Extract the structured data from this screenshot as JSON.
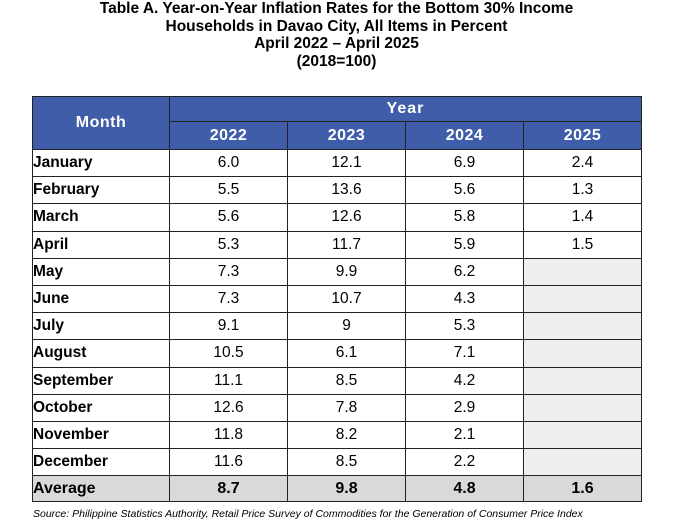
{
  "title": {
    "line1": "Table A. Year-on-Year Inflation Rates for the Bottom 30% Income",
    "line2": "Households in Davao City, All Items in Percent",
    "line3": "April 2022 – April 2025",
    "line4": "(2018=100)"
  },
  "table": {
    "month_header": "Month",
    "year_header": "Year",
    "years": [
      "2022",
      "2023",
      "2024",
      "2025"
    ],
    "rows": [
      {
        "month": "January",
        "values": [
          "6.0",
          "12.1",
          "6.9",
          "2.4"
        ]
      },
      {
        "month": "February",
        "values": [
          "5.5",
          "13.6",
          "5.6",
          "1.3"
        ]
      },
      {
        "month": "March",
        "values": [
          "5.6",
          "12.6",
          "5.8",
          "1.4"
        ]
      },
      {
        "month": "April",
        "values": [
          "5.3",
          "11.7",
          "5.9",
          "1.5"
        ]
      },
      {
        "month": "May",
        "values": [
          "7.3",
          "9.9",
          "6.2",
          ""
        ]
      },
      {
        "month": "June",
        "values": [
          "7.3",
          "10.7",
          "4.3",
          ""
        ]
      },
      {
        "month": "July",
        "values": [
          "9.1",
          "9",
          "5.3",
          ""
        ]
      },
      {
        "month": "August",
        "values": [
          "10.5",
          "6.1",
          "7.1",
          ""
        ]
      },
      {
        "month": "September",
        "values": [
          "11.1",
          "8.5",
          "4.2",
          ""
        ]
      },
      {
        "month": "October",
        "values": [
          "12.6",
          "7.8",
          "2.9",
          ""
        ]
      },
      {
        "month": "November",
        "values": [
          "11.8",
          "8.2",
          "2.1",
          ""
        ]
      },
      {
        "month": "December",
        "values": [
          "11.6",
          "8.5",
          "2.2",
          ""
        ]
      }
    ],
    "average": {
      "label": "Average",
      "values": [
        "8.7",
        "9.8",
        "4.8",
        "1.6"
      ]
    }
  },
  "source": "Source: Philippine Statistics Authority, Retail Price Survey of Commodities for the Generation of Consumer Price Index",
  "colors": {
    "header_bg": "#3f5da8",
    "header_text": "#ffffff",
    "average_bg": "#d9d9d9",
    "empty_cell_bg": "#efefef"
  }
}
